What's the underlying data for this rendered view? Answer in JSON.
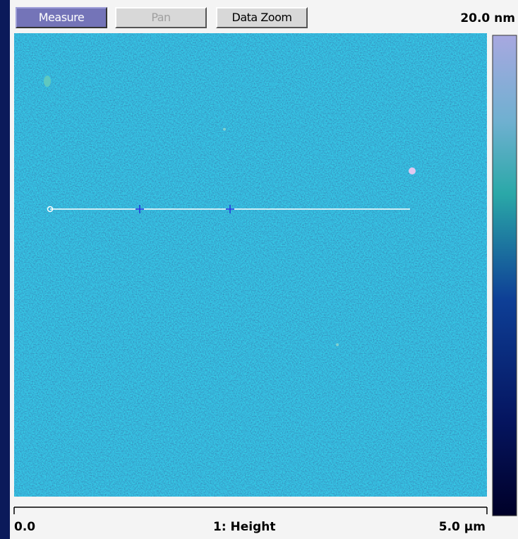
{
  "toolbar": {
    "buttons": [
      "Measure",
      "Pan",
      "Data Zoom"
    ]
  },
  "colorbar": {
    "max_label": "20.0 nm"
  },
  "scale": {
    "start": "0.0",
    "title": "1: Height",
    "end": "5.0 µm"
  }
}
